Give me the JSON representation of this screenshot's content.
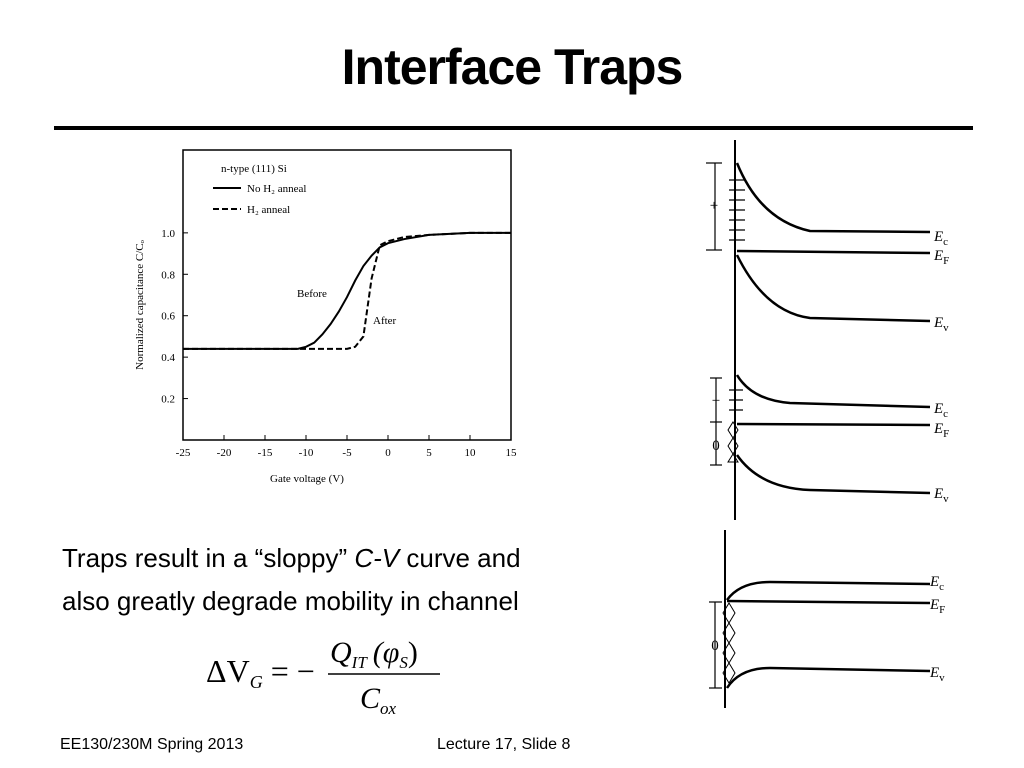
{
  "slide": {
    "title": "Interface Traps",
    "text": [
      [
        "Traps result in a “sloppy” ",
        "C-V",
        " curve and"
      ],
      [
        "also greatly degrade mobility in channel"
      ]
    ],
    "equation": {
      "lhs": "ΔV",
      "lhs_sub": "G",
      "op": "= −",
      "num": "Q",
      "num_sub": "IT",
      "num_arg": "(φ",
      "arg_sub": "S",
      "close": ")",
      "den": "C",
      "den_sub": "ox"
    },
    "footer": {
      "left": "EE130/230M Spring 2013",
      "right": "Lecture 17, Slide 8"
    }
  },
  "chart_data": {
    "type": "line",
    "xlabel": "Gate voltage   (V)",
    "ylabel": "Normalized capacitance C/Cₒ",
    "legend_title": "n-type (111) Si",
    "annotations": [
      "Before",
      "After"
    ],
    "x": [
      -25,
      -20,
      -15,
      -11,
      -10,
      -9,
      -8,
      -7,
      -6,
      -5,
      -4,
      -3,
      -2,
      -1,
      0,
      2,
      5,
      10,
      15
    ],
    "series": [
      {
        "name": "No H₂ anneal",
        "color": "#000000",
        "dashed": false,
        "values": [
          0.44,
          0.44,
          0.44,
          0.44,
          0.45,
          0.47,
          0.51,
          0.56,
          0.62,
          0.69,
          0.77,
          0.84,
          0.89,
          0.93,
          0.95,
          0.97,
          0.99,
          1.0,
          1.0
        ]
      },
      {
        "name": "H₂ anneal",
        "color": "#000000",
        "dashed": true,
        "values": [
          0.44,
          0.44,
          0.44,
          0.44,
          0.44,
          0.44,
          0.44,
          0.44,
          0.44,
          0.44,
          0.45,
          0.5,
          0.78,
          0.94,
          0.96,
          0.98,
          0.99,
          1.0,
          1.0
        ]
      }
    ],
    "xlim": [
      -25,
      15
    ],
    "xticks": [
      -25,
      -20,
      -15,
      -10,
      -5,
      0,
      5,
      10,
      15
    ],
    "ylim": [
      0,
      1.4
    ],
    "yticks": [
      0.2,
      0.4,
      0.6,
      0.8,
      {
        "value": 1,
        "label": "1.0"
      }
    ],
    "grid": false
  },
  "band_diagrams": [
    {
      "levels": [
        {
          "symbol": "E",
          "sub": "c"
        },
        {
          "symbol": "E",
          "sub": "F"
        },
        {
          "symbol": "E",
          "sub": "v"
        }
      ],
      "charges": [
        "+"
      ]
    },
    {
      "levels": [
        {
          "symbol": "E",
          "sub": "c"
        },
        {
          "symbol": "E",
          "sub": "F"
        },
        {
          "symbol": "E",
          "sub": "v"
        }
      ],
      "charges": [
        "+",
        "0"
      ]
    },
    {
      "levels": [
        {
          "symbol": "E",
          "sub": "c"
        },
        {
          "symbol": "E",
          "sub": "F"
        },
        {
          "symbol": "E",
          "sub": "v"
        }
      ],
      "charges": [
        "0"
      ]
    }
  ]
}
